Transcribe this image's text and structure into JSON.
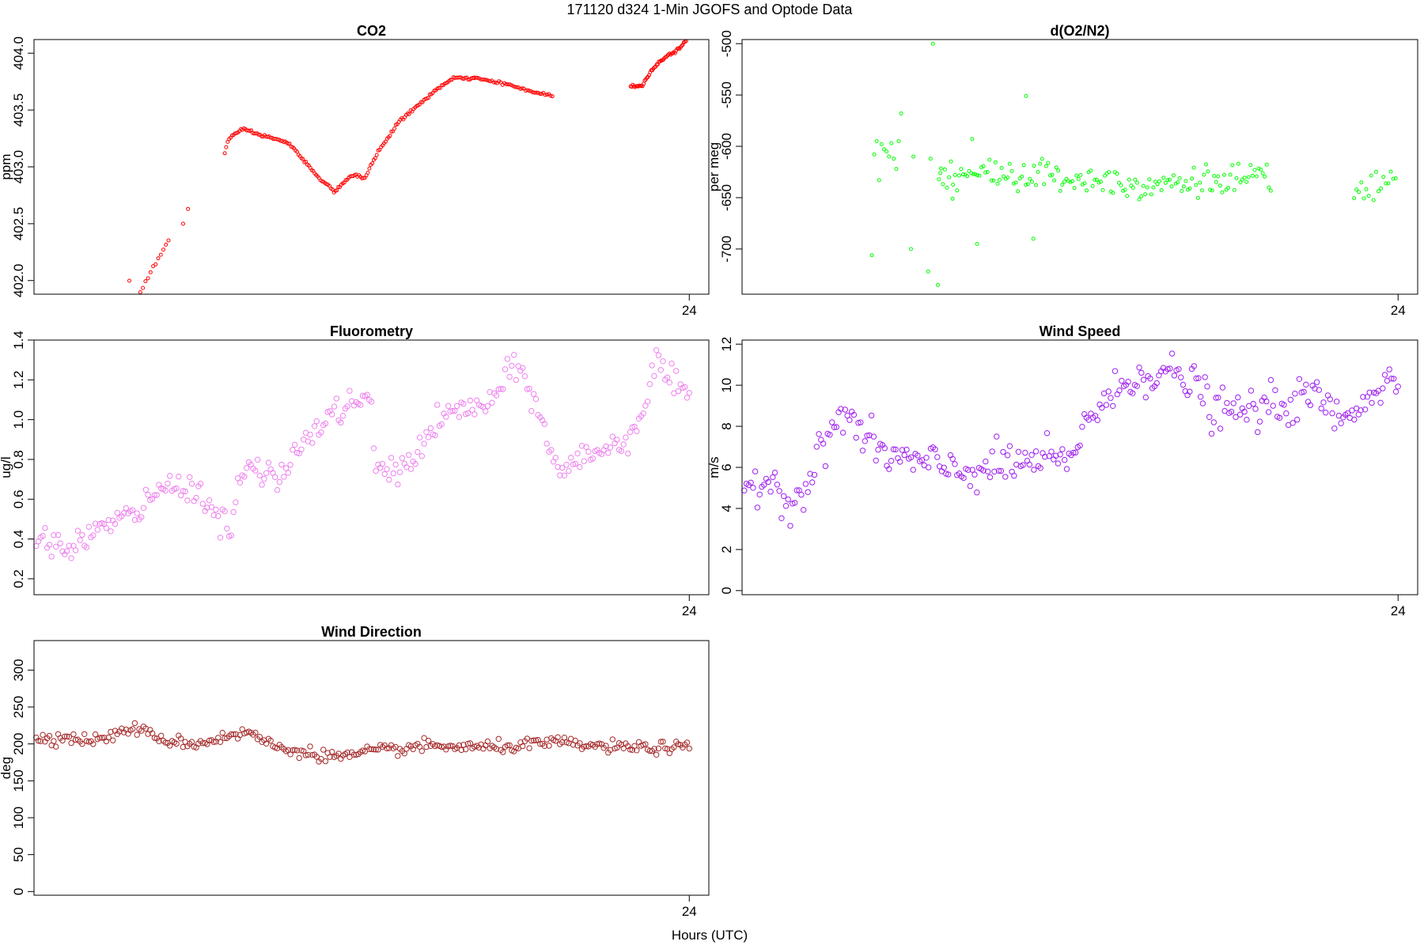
{
  "figure": {
    "title": "171120   d324   1-Min  JGOFS and Optode Data",
    "xlabel": "Hours (UTC)"
  },
  "chart_data": [
    {
      "type": "scatter",
      "title": "CO2",
      "ylabel": "ppm",
      "color": "#ff0000",
      "xlim": [
        10.6,
        24.4
      ],
      "ylim": [
        401.88,
        404.12
      ],
      "xticks": [
        24
      ],
      "xtick_labels": [
        "24"
      ],
      "yticks": [
        402.0,
        402.5,
        403.0,
        403.5,
        404.0
      ],
      "ytick_labels": [
        "402.0",
        "402.5",
        "403.0",
        "403.5",
        "404.0"
      ],
      "marker_size": 2,
      "segments": [
        {
          "x0": 12.55,
          "x1": 12.65,
          "n": 2,
          "anchors": [
            [
              0,
              402.0
            ],
            [
              1,
              401.85
            ]
          ],
          "noise": 0.005
        },
        {
          "x0": 12.67,
          "x1": 13.35,
          "n": 14,
          "anchors": [
            [
              0,
              401.83
            ],
            [
              1,
              402.35
            ]
          ],
          "noise": 0.01
        },
        {
          "x0": 13.65,
          "x1": 13.75,
          "n": 2,
          "anchors": [
            [
              0,
              402.5
            ],
            [
              1,
              402.63
            ]
          ],
          "noise": 0.0
        },
        {
          "x0": 14.5,
          "x1": 19.6,
          "n": 170,
          "anchors": [
            [
              0,
              403.12
            ],
            [
              0.015,
              403.25
            ],
            [
              0.05,
              403.3
            ],
            [
              0.08,
              403.33
            ],
            [
              0.14,
              403.28
            ],
            [
              0.2,
              403.25
            ],
            [
              0.26,
              403.2
            ],
            [
              0.32,
              403.05
            ],
            [
              0.38,
              402.9
            ],
            [
              0.44,
              402.78
            ],
            [
              0.48,
              402.87
            ],
            [
              0.52,
              402.93
            ],
            [
              0.56,
              402.9
            ],
            [
              0.62,
              403.15
            ],
            [
              0.7,
              403.4
            ],
            [
              0.78,
              403.55
            ],
            [
              0.86,
              403.7
            ],
            [
              0.92,
              403.78
            ],
            [
              1,
              403.78
            ]
          ],
          "noise": 0.006
        },
        {
          "x0": 19.6,
          "x1": 21.2,
          "n": 45,
          "anchors": [
            [
              0,
              403.78
            ],
            [
              0.4,
              403.73
            ],
            [
              0.8,
              403.65
            ],
            [
              1,
              403.63
            ]
          ],
          "noise": 0.005
        },
        {
          "x0": 22.8,
          "x1": 24.0,
          "n": 55,
          "anchors": [
            [
              0,
              403.71
            ],
            [
              0.2,
              403.71
            ],
            [
              0.35,
              403.85
            ],
            [
              0.55,
              403.95
            ],
            [
              0.85,
              404.05
            ],
            [
              1,
              404.15
            ]
          ],
          "noise": 0.006
        }
      ]
    },
    {
      "type": "scatter",
      "title": "d(O2/N2)",
      "ylabel": "per meg",
      "color": "#00ff00",
      "xlim": [
        10.6,
        24.4
      ],
      "ylim": [
        -744,
        -496
      ],
      "xticks": [
        24
      ],
      "xtick_labels": [
        "24"
      ],
      "yticks": [
        -700,
        -650,
        -600,
        -550,
        -500
      ],
      "ytick_labels": [
        "-700",
        "-650",
        "-600",
        "-550",
        "-500"
      ],
      "marker_size": 2,
      "points": [
        [
          13.25,
          -706
        ],
        [
          13.3,
          -608
        ],
        [
          13.35,
          -595
        ],
        [
          13.4,
          -633
        ],
        [
          13.45,
          -598
        ],
        [
          13.5,
          -603
        ],
        [
          13.55,
          -605
        ],
        [
          13.6,
          -610
        ],
        [
          13.65,
          -597
        ],
        [
          13.7,
          -612
        ],
        [
          13.75,
          -622
        ],
        [
          13.8,
          -595
        ],
        [
          13.85,
          -568
        ],
        [
          14.05,
          -700
        ],
        [
          14.1,
          -610
        ],
        [
          14.4,
          -722
        ],
        [
          14.45,
          -612
        ],
        [
          14.5,
          -500
        ],
        [
          14.6,
          -735
        ],
        [
          14.65,
          -626
        ],
        [
          14.9,
          -651
        ],
        [
          15.3,
          -593
        ],
        [
          15.4,
          -695
        ],
        [
          16.4,
          -551
        ],
        [
          16.55,
          -690
        ]
      ],
      "segments": [
        {
          "x0": 14.62,
          "x1": 21.4,
          "n": 165,
          "anchors": [
            [
              0,
              -626
            ],
            [
              0.3,
              -628
            ],
            [
              0.6,
              -636
            ],
            [
              1,
              -632
            ]
          ],
          "noise": 8
        },
        {
          "x0": 23.1,
          "x1": 23.95,
          "n": 18,
          "anchors": [
            [
              0,
              -648
            ],
            [
              0.3,
              -640
            ],
            [
              0.6,
              -638
            ],
            [
              1,
              -636
            ]
          ],
          "noise": 7
        }
      ]
    },
    {
      "type": "scatter",
      "title": "Fluorometry",
      "ylabel": "ug/l",
      "color": "#ee82ee",
      "xlim": [
        10.6,
        24.4
      ],
      "ylim": [
        0.12,
        1.4
      ],
      "xticks": [
        24
      ],
      "xtick_labels": [
        "24"
      ],
      "yticks": [
        0.2,
        0.4,
        0.6,
        0.8,
        1.0,
        1.2,
        1.4
      ],
      "ytick_labels": [
        "0.2",
        "0.4",
        "0.6",
        "0.8",
        "1.0",
        "1.2",
        "1.4"
      ],
      "marker_size": 3.2,
      "segments": [
        {
          "x0": 10.6,
          "x1": 24.0,
          "n": 300,
          "anchors": [
            [
              0,
              0.38
            ],
            [
              0.05,
              0.36
            ],
            [
              0.1,
              0.45
            ],
            [
              0.15,
              0.52
            ],
            [
              0.2,
              0.66
            ],
            [
              0.24,
              0.68
            ],
            [
              0.27,
              0.55
            ],
            [
              0.3,
              0.45
            ],
            [
              0.32,
              0.76
            ],
            [
              0.37,
              0.7
            ],
            [
              0.42,
              0.92
            ],
            [
              0.47,
              1.06
            ],
            [
              0.5,
              1.1
            ],
            [
              0.515,
              1.05
            ],
            [
              0.52,
              0.78
            ],
            [
              0.55,
              0.72
            ],
            [
              0.58,
              0.82
            ],
            [
              0.62,
              1.0
            ],
            [
              0.65,
              1.05
            ],
            [
              0.7,
              1.08
            ],
            [
              0.72,
              1.22
            ],
            [
              0.745,
              1.25
            ],
            [
              0.76,
              1.12
            ],
            [
              0.785,
              0.9
            ],
            [
              0.8,
              0.72
            ],
            [
              0.83,
              0.8
            ],
            [
              0.86,
              0.85
            ],
            [
              0.9,
              0.88
            ],
            [
              0.93,
              1.05
            ],
            [
              0.95,
              1.3
            ],
            [
              0.97,
              1.2
            ],
            [
              1,
              1.08
            ]
          ],
          "noise": 0.035
        }
      ]
    },
    {
      "type": "scatter",
      "title": "Wind Speed",
      "ylabel": "m/s",
      "color": "#a020f0",
      "xlim": [
        10.6,
        24.4
      ],
      "ylim": [
        -0.2,
        12.2
      ],
      "xticks": [
        24
      ],
      "xtick_labels": [
        "24"
      ],
      "yticks": [
        0,
        2,
        4,
        6,
        8,
        10,
        12
      ],
      "ytick_labels": [
        "0",
        "2",
        "4",
        "6",
        "8",
        "10",
        "12"
      ],
      "marker_size": 3.2,
      "segments": [
        {
          "x0": 10.6,
          "x1": 24.0,
          "n": 300,
          "anchors": [
            [
              0,
              5.0
            ],
            [
              0.04,
              5.5
            ],
            [
              0.07,
              4.4
            ],
            [
              0.1,
              5.0
            ],
            [
              0.13,
              7.6
            ],
            [
              0.16,
              8.7
            ],
            [
              0.19,
              7.2
            ],
            [
              0.23,
              6.5
            ],
            [
              0.3,
              6.0
            ],
            [
              0.35,
              5.8
            ],
            [
              0.42,
              6.2
            ],
            [
              0.47,
              6.4
            ],
            [
              0.5,
              6.0
            ],
            [
              0.52,
              8.3
            ],
            [
              0.55,
              9.0
            ],
            [
              0.6,
              10.5
            ],
            [
              0.65,
              10.6
            ],
            [
              0.7,
              9.8
            ],
            [
              0.72,
              8.6
            ],
            [
              0.78,
              8.8
            ],
            [
              0.85,
              9.2
            ],
            [
              0.88,
              9.5
            ],
            [
              0.91,
              8.2
            ],
            [
              0.95,
              9.5
            ],
            [
              1,
              10.3
            ]
          ],
          "noise": 0.5
        }
      ]
    },
    {
      "type": "scatter",
      "title": "Wind Direction",
      "ylabel": "deg",
      "color": "#a52a2a",
      "xlim": [
        10.6,
        24.4
      ],
      "ylim": [
        -5,
        340
      ],
      "xticks": [
        24
      ],
      "xtick_labels": [
        "24"
      ],
      "yticks": [
        0,
        50,
        100,
        150,
        200,
        250,
        300
      ],
      "ytick_labels": [
        "0",
        "50",
        "100",
        "150",
        "200",
        "250",
        "300"
      ],
      "marker_size": 3.2,
      "segments": [
        {
          "x0": 10.6,
          "x1": 24.0,
          "n": 300,
          "anchors": [
            [
              0,
              210
            ],
            [
              0.1,
              205
            ],
            [
              0.15,
              222
            ],
            [
              0.2,
              205
            ],
            [
              0.25,
              200
            ],
            [
              0.3,
              212
            ],
            [
              0.33,
              215
            ],
            [
              0.37,
              195
            ],
            [
              0.42,
              188
            ],
            [
              0.47,
              182
            ],
            [
              0.52,
              190
            ],
            [
              0.6,
              197
            ],
            [
              0.7,
              195
            ],
            [
              0.8,
              202
            ],
            [
              0.85,
              197
            ],
            [
              0.9,
              195
            ],
            [
              1,
              195
            ]
          ],
          "noise": 4
        }
      ]
    }
  ]
}
